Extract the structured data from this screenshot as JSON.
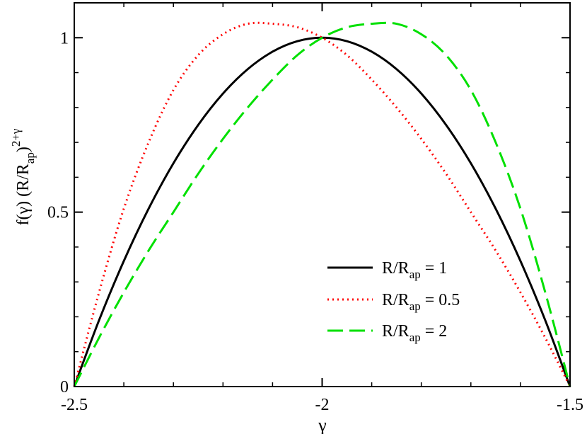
{
  "chart_data": {
    "type": "line",
    "xlabel": "γ",
    "ylabel": {
      "base": "f(γ) (R/R",
      "sub": "ap",
      "close": ")",
      "sup": "2+γ"
    },
    "xlim": [
      -2.5,
      -1.5
    ],
    "ylim": [
      0,
      1.1
    ],
    "x_ticks": [
      -2.5,
      -2,
      -1.5
    ],
    "x_tick_labels": [
      "-2.5",
      "-2",
      "-1.5"
    ],
    "y_ticks": [
      0,
      0.5,
      1
    ],
    "y_tick_labels": [
      "0",
      "0.5",
      "1"
    ],
    "x_minor_step": 0.1,
    "y_minor_step": 0.1,
    "grid": false,
    "legend_position": "bottom-right",
    "series": [
      {
        "legend": {
          "prefix": "R/R",
          "sub": "ap",
          "suffix": " = 1"
        },
        "color": "#000000",
        "style": "solid",
        "x": [
          -2.5,
          -2.45,
          -2.4,
          -2.35,
          -2.3,
          -2.25,
          -2.2,
          -2.15,
          -2.1,
          -2.05,
          -2.0,
          -1.95,
          -1.9,
          -1.85,
          -1.8,
          -1.75,
          -1.7,
          -1.65,
          -1.6,
          -1.55,
          -1.5
        ],
        "y": [
          0.0,
          0.19,
          0.36,
          0.51,
          0.64,
          0.75,
          0.84,
          0.91,
          0.96,
          0.99,
          1.0,
          0.99,
          0.96,
          0.91,
          0.84,
          0.75,
          0.64,
          0.51,
          0.36,
          0.19,
          0.0
        ]
      },
      {
        "legend": {
          "prefix": "R/R",
          "sub": "ap",
          "suffix": " = 0.5"
        },
        "color": "#ff0000",
        "style": "dotted",
        "x": [
          -2.5,
          -2.45,
          -2.4,
          -2.35,
          -2.3,
          -2.25,
          -2.2,
          -2.15,
          -2.1,
          -2.05,
          -2.0,
          -1.95,
          -1.9,
          -1.85,
          -1.8,
          -1.75,
          -1.7,
          -1.65,
          -1.6,
          -1.55,
          -1.5
        ],
        "y": [
          0.0,
          0.27,
          0.51,
          0.7,
          0.85,
          0.95,
          1.01,
          1.04,
          1.04,
          1.03,
          1.0,
          0.95,
          0.88,
          0.8,
          0.71,
          0.61,
          0.5,
          0.39,
          0.27,
          0.14,
          0.0
        ]
      },
      {
        "legend": {
          "prefix": "R/R",
          "sub": "ap",
          "suffix": " = 2"
        },
        "color": "#00e000",
        "style": "dashed",
        "x": [
          -2.5,
          -2.45,
          -2.4,
          -2.35,
          -2.3,
          -2.25,
          -2.2,
          -2.15,
          -2.1,
          -2.05,
          -2.0,
          -1.95,
          -1.9,
          -1.85,
          -1.8,
          -1.75,
          -1.7,
          -1.65,
          -1.6,
          -1.55,
          -1.5
        ],
        "y": [
          0.0,
          0.14,
          0.27,
          0.39,
          0.5,
          0.61,
          0.71,
          0.8,
          0.88,
          0.95,
          1.0,
          1.03,
          1.04,
          1.04,
          1.01,
          0.95,
          0.85,
          0.7,
          0.51,
          0.27,
          0.0
        ]
      }
    ]
  }
}
